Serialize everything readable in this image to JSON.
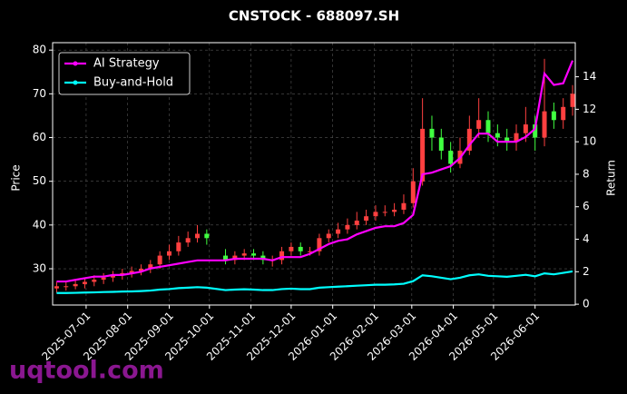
{
  "chart_data": {
    "type": "candlestick",
    "title": "CNSTOCK - 688097.SH",
    "ylabel": "Price",
    "y2label": "Return",
    "x": [
      "2025-06-09",
      "2025-06-16",
      "2025-06-23",
      "2025-06-30",
      "2025-07-07",
      "2025-07-14",
      "2025-07-21",
      "2025-07-28",
      "2025-08-04",
      "2025-08-11",
      "2025-08-18",
      "2025-08-25",
      "2025-09-01",
      "2025-09-08",
      "2025-09-15",
      "2025-09-22",
      "2025-09-29",
      "2025-10-13",
      "2025-10-20",
      "2025-10-27",
      "2025-11-03",
      "2025-11-10",
      "2025-11-17",
      "2025-11-24",
      "2025-12-01",
      "2025-12-08",
      "2025-12-15",
      "2025-12-22",
      "2025-12-29",
      "2026-01-05",
      "2026-01-12",
      "2026-01-19",
      "2026-01-26",
      "2026-02-02",
      "2026-02-09",
      "2026-02-16",
      "2026-02-23",
      "2026-03-02",
      "2026-03-09",
      "2026-03-16",
      "2026-03-23",
      "2026-03-30",
      "2026-04-06",
      "2026-04-13",
      "2026-04-20",
      "2026-04-27",
      "2026-05-04",
      "2026-05-11",
      "2026-05-18",
      "2026-05-25",
      "2026-06-01",
      "2026-06-08",
      "2026-06-15",
      "2026-06-22",
      "2026-06-29"
    ],
    "open": [
      25.5,
      26,
      26,
      26.5,
      27,
      27.5,
      28,
      28.5,
      29,
      29.5,
      30,
      31,
      33,
      34,
      36,
      37,
      38,
      33,
      32,
      33,
      33.5,
      33,
      32,
      32,
      34,
      35,
      34,
      34,
      37,
      38,
      39,
      40,
      41,
      42,
      43,
      43,
      43.5,
      45,
      50,
      62,
      60,
      57,
      54,
      57,
      62,
      64,
      61,
      60,
      59,
      61,
      63,
      60,
      66,
      64,
      67
    ],
    "high": [
      27,
      27,
      27.5,
      28,
      28.5,
      29,
      29.5,
      30,
      30.5,
      31,
      32,
      34,
      35.5,
      37.5,
      38.5,
      40,
      39,
      34.5,
      34,
      34.5,
      34.5,
      34,
      33,
      35,
      36,
      36,
      35,
      38,
      39,
      40.5,
      41.5,
      43,
      43.5,
      44.5,
      44.5,
      45,
      47,
      53,
      69,
      65,
      62,
      59,
      60,
      65,
      69,
      66,
      63,
      62,
      63,
      67,
      65,
      78,
      68,
      69,
      72
    ],
    "low": [
      24.5,
      25,
      25.3,
      25.5,
      26,
      26.5,
      27,
      27.5,
      28,
      28.5,
      29,
      30,
      32,
      33,
      35,
      36,
      35.5,
      31,
      31,
      32,
      32,
      31,
      30.5,
      31,
      33,
      33,
      33,
      33,
      36,
      37,
      38,
      39,
      40,
      41,
      42,
      42,
      42.5,
      44,
      49,
      57,
      55,
      52,
      53,
      56,
      60,
      59,
      58,
      57,
      57,
      59,
      57,
      58,
      62,
      62,
      65
    ],
    "close": [
      26,
      26,
      26.5,
      27,
      27.5,
      28,
      28.5,
      29,
      29.5,
      30,
      31,
      33,
      34,
      36,
      37,
      38,
      37,
      32,
      33,
      33.5,
      33,
      32,
      32,
      34,
      35,
      34,
      34,
      37,
      38,
      39,
      40,
      41,
      42,
      43,
      43,
      43.5,
      45,
      50,
      62,
      60,
      57,
      54,
      57,
      62,
      64,
      61,
      60,
      59,
      61,
      63,
      60,
      66,
      64,
      67,
      70
    ],
    "up_color": "#ff4040",
    "down_color": "#40ff40",
    "series": [
      {
        "name": "AI Strategy",
        "color": "#ff00ff",
        "axis": "y2",
        "values": [
          1.4,
          1.4,
          1.5,
          1.6,
          1.7,
          1.7,
          1.8,
          1.8,
          1.9,
          2.0,
          2.2,
          2.3,
          2.4,
          2.5,
          2.6,
          2.7,
          2.7,
          2.7,
          2.8,
          2.8,
          2.8,
          2.8,
          2.7,
          2.9,
          2.9,
          2.9,
          3.1,
          3.4,
          3.7,
          3.9,
          4.0,
          4.3,
          4.5,
          4.7,
          4.8,
          4.8,
          5.0,
          5.5,
          8.0,
          8.1,
          8.3,
          8.5,
          9.0,
          9.8,
          10.5,
          10.5,
          10.0,
          10.0,
          10.0,
          10.3,
          10.8,
          14.2,
          13.5,
          13.6,
          15.0
        ]
      },
      {
        "name": "Buy-and-Hold",
        "color": "#00ffff",
        "axis": "y2",
        "values": [
          0.69,
          0.69,
          0.7,
          0.72,
          0.73,
          0.75,
          0.76,
          0.78,
          0.79,
          0.81,
          0.84,
          0.9,
          0.93,
          0.99,
          1.02,
          1.05,
          1.02,
          0.87,
          0.9,
          0.92,
          0.9,
          0.87,
          0.87,
          0.93,
          0.96,
          0.93,
          0.93,
          1.02,
          1.05,
          1.08,
          1.11,
          1.14,
          1.17,
          1.2,
          1.2,
          1.22,
          1.26,
          1.42,
          1.78,
          1.72,
          1.63,
          1.54,
          1.63,
          1.78,
          1.84,
          1.75,
          1.72,
          1.69,
          1.75,
          1.81,
          1.72,
          1.9,
          1.84,
          1.93,
          2.02
        ]
      }
    ],
    "xlim": [
      "2025-06-06",
      "2026-07-01"
    ],
    "xticks": [
      "2025-07-01",
      "2025-08-01",
      "2025-09-01",
      "2025-10-01",
      "2025-11-01",
      "2025-12-01",
      "2026-01-01",
      "2026-02-01",
      "2026-03-01",
      "2026-04-01",
      "2026-05-01",
      "2026-06-01"
    ],
    "ylim": [
      21.7,
      81.7
    ],
    "yticks": [
      30,
      40,
      50,
      60,
      70,
      80
    ],
    "y2lim": [
      -0.05,
      16.1
    ],
    "y2ticks": [
      0,
      2,
      4,
      6,
      8,
      10,
      12,
      14
    ],
    "grid": true,
    "legend": "upper left"
  },
  "watermark": "uqtool.com"
}
